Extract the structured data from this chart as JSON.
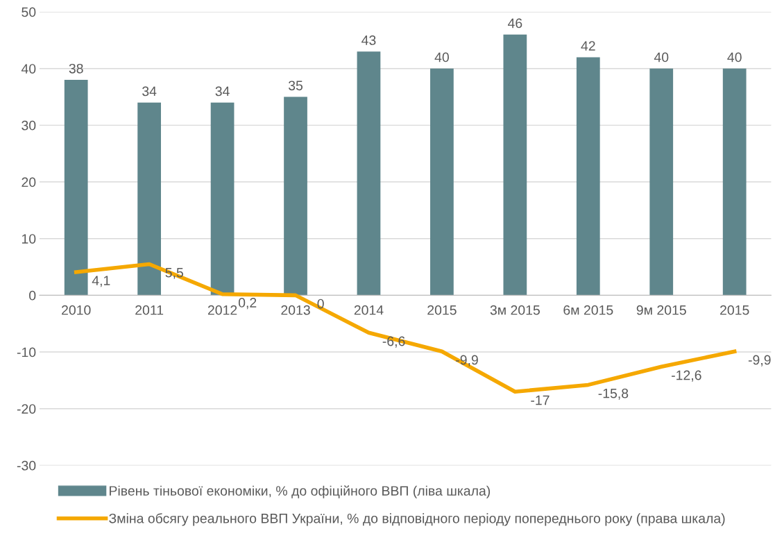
{
  "chart_data": {
    "type": "bar",
    "categories": [
      "2010",
      "2011",
      "2012",
      "2013",
      "2014",
      "2015",
      "3м 2015",
      "6м 2015",
      "9м 2015",
      "2015"
    ],
    "series": [
      {
        "name": "Рівень тіньової економіки, % до офіційного ВВП (ліва шкала)",
        "color": "#5f868c",
        "values": [
          38,
          34,
          34,
          35,
          43,
          40,
          46,
          42,
          40,
          40
        ],
        "value_labels": [
          "38",
          "34",
          "34",
          "35",
          "43",
          "40",
          "46",
          "42",
          "40",
          "40"
        ]
      },
      {
        "name": "Зміна обсягу реального ВВП України, % до відповідного періоду попереднього року (права шкала)",
        "type": "line",
        "color": "#f5a800",
        "values": [
          4.1,
          5.5,
          0.2,
          0,
          -6.6,
          -9.9,
          -17,
          -15.8,
          -12.6,
          -9.9
        ],
        "value_labels": [
          "4,1",
          "5,5",
          "0,2",
          "0",
          "-6,6",
          "-9,9",
          "-17",
          "-15,8",
          "-12,6",
          "-9,9"
        ]
      }
    ],
    "ylim": [
      -30,
      50
    ],
    "yticks": [
      -30,
      -20,
      -10,
      0,
      10,
      20,
      30,
      40,
      50
    ],
    "grid": "y",
    "legend": "bottom",
    "marker": "none",
    "line_style": "solid"
  }
}
